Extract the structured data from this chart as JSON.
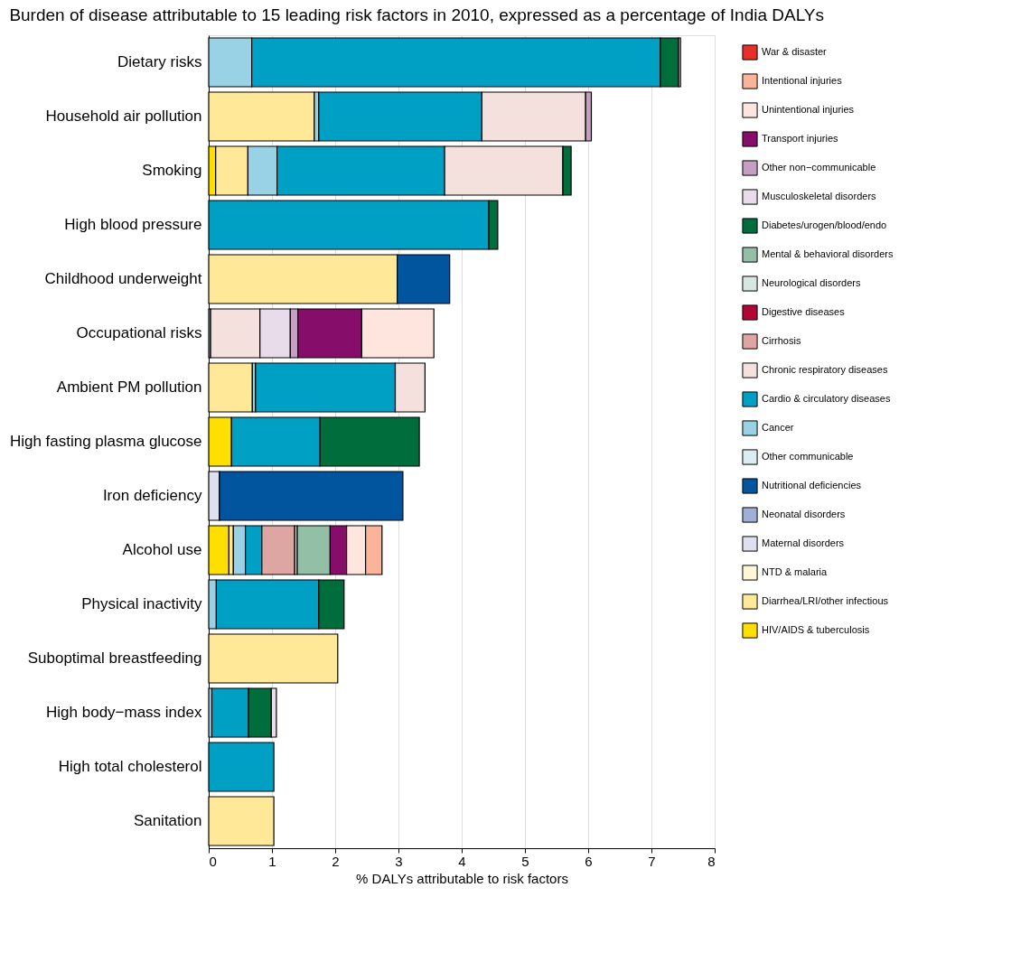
{
  "chart_data": {
    "type": "bar",
    "orientation": "horizontal",
    "stacked": true,
    "title": "Burden of disease attributable to 15 leading risk factors in 2010, expressed as a percentage of India DALYs",
    "xlabel": "% DALYs attributable to risk factors",
    "categories": [
      "Dietary risks",
      "Household air pollution",
      "Smoking",
      "High blood pressure",
      "Childhood underweight",
      "Occupational risks",
      "Ambient PM pollution",
      "High fasting plasma glucose",
      "Iron deficiency",
      "Alcohol use",
      "Physical inactivity",
      "Suboptimal breastfeeding",
      "High body−mass index",
      "High total cholesterol",
      "Sanitation"
    ],
    "xlim": [
      0,
      8
    ],
    "xticks": [
      0,
      1,
      2,
      3,
      4,
      5,
      6,
      7,
      8
    ],
    "grid": "x",
    "legend": "right",
    "series": [
      {
        "name": "HIV/AIDS & tuberculosis",
        "color": "#ffdf00",
        "values": [
          null,
          null,
          0.11,
          null,
          null,
          null,
          null,
          0.36,
          null,
          0.32,
          null,
          null,
          null,
          null,
          null
        ]
      },
      {
        "name": "Diarrhea/LRI/other infectious",
        "color": "#ffe897",
        "values": [
          null,
          1.67,
          0.51,
          null,
          2.98,
          null,
          0.69,
          null,
          null,
          0.07,
          null,
          2.04,
          null,
          null,
          1.03
        ]
      },
      {
        "name": "NTD & malaria",
        "color": "#fff6d9",
        "values": [
          null,
          null,
          null,
          null,
          null,
          null,
          null,
          null,
          null,
          null,
          null,
          null,
          null,
          null,
          null
        ]
      },
      {
        "name": "Maternal disorders",
        "color": "#dfe0ef",
        "values": [
          null,
          null,
          null,
          null,
          null,
          null,
          null,
          null,
          0.17,
          null,
          null,
          null,
          null,
          null,
          null
        ]
      },
      {
        "name": "Neonatal disorders",
        "color": "#9fafd6",
        "values": [
          null,
          null,
          null,
          null,
          null,
          null,
          null,
          null,
          null,
          null,
          null,
          null,
          null,
          null,
          null
        ]
      },
      {
        "name": "Nutritional deficiencies",
        "color": "#00559e",
        "values": [
          null,
          null,
          null,
          null,
          0.83,
          null,
          null,
          null,
          2.9,
          null,
          null,
          null,
          null,
          null,
          null
        ]
      },
      {
        "name": "Other communicable",
        "color": "#dcedf2",
        "values": [
          null,
          null,
          null,
          null,
          null,
          null,
          null,
          null,
          null,
          null,
          null,
          null,
          null,
          null,
          null
        ]
      },
      {
        "name": "Cancer",
        "color": "#99d2e4",
        "values": [
          0.68,
          0.07,
          0.46,
          null,
          null,
          0.03,
          0.05,
          null,
          null,
          0.19,
          0.12,
          null,
          0.05,
          null,
          null
        ]
      },
      {
        "name": "Cardio & circulatory diseases",
        "color": "#00a0c4",
        "values": [
          6.46,
          2.58,
          2.65,
          4.43,
          null,
          null,
          2.21,
          1.4,
          null,
          0.26,
          1.62,
          null,
          0.58,
          1.03,
          null
        ]
      },
      {
        "name": "Chronic respiratory diseases",
        "color": "#f4e0dc",
        "values": [
          null,
          1.64,
          1.87,
          null,
          null,
          0.78,
          0.47,
          null,
          null,
          null,
          null,
          null,
          null,
          null,
          null
        ]
      },
      {
        "name": "Cirrhosis",
        "color": "#dea6a2",
        "values": [
          null,
          null,
          null,
          null,
          null,
          null,
          null,
          null,
          null,
          0.52,
          null,
          null,
          null,
          null,
          null
        ]
      },
      {
        "name": "Digestive diseases",
        "color": "#b10534",
        "values": [
          null,
          null,
          null,
          null,
          null,
          null,
          null,
          null,
          null,
          null,
          null,
          null,
          null,
          null,
          null
        ]
      },
      {
        "name": "Neurological disorders",
        "color": "#d6e6e0",
        "values": [
          null,
          null,
          null,
          null,
          null,
          null,
          null,
          null,
          null,
          0.04,
          null,
          null,
          null,
          null,
          null
        ]
      },
      {
        "name": "Mental & behavioral disorders",
        "color": "#93bfa6",
        "values": [
          null,
          null,
          null,
          null,
          null,
          null,
          null,
          null,
          null,
          0.52,
          null,
          null,
          null,
          null,
          null
        ]
      },
      {
        "name": "Diabetes/urogen/blood/endo",
        "color": "#006e3c",
        "values": [
          0.29,
          null,
          0.13,
          0.14,
          null,
          null,
          null,
          1.57,
          null,
          null,
          0.4,
          null,
          0.36,
          null,
          null
        ]
      },
      {
        "name": "Musculoskeletal disorders",
        "color": "#e8dcea",
        "values": [
          0.03,
          null,
          null,
          null,
          null,
          0.48,
          null,
          null,
          null,
          null,
          null,
          null,
          0.08,
          null,
          null
        ]
      },
      {
        "name": "Other non−communicable",
        "color": "#c49fc3",
        "values": [
          null,
          0.09,
          null,
          null,
          null,
          0.12,
          null,
          null,
          null,
          null,
          null,
          null,
          null,
          null,
          null
        ]
      },
      {
        "name": "Transport injuries",
        "color": "#860e6a",
        "values": [
          null,
          null,
          null,
          null,
          null,
          1.01,
          null,
          null,
          null,
          0.26,
          null,
          null,
          null,
          null,
          null
        ]
      },
      {
        "name": "Unintentional injuries",
        "color": "#fee6de",
        "values": [
          null,
          null,
          null,
          null,
          null,
          1.14,
          null,
          null,
          null,
          0.3,
          null,
          null,
          null,
          null,
          null
        ]
      },
      {
        "name": "Intentional injuries",
        "color": "#fbb49a",
        "values": [
          null,
          null,
          null,
          null,
          null,
          null,
          null,
          null,
          null,
          0.26,
          null,
          null,
          null,
          null,
          null
        ]
      },
      {
        "name": "War & disaster",
        "color": "#e8302a",
        "values": [
          null,
          null,
          null,
          null,
          null,
          null,
          null,
          null,
          null,
          null,
          null,
          null,
          null,
          null,
          null
        ]
      }
    ]
  }
}
